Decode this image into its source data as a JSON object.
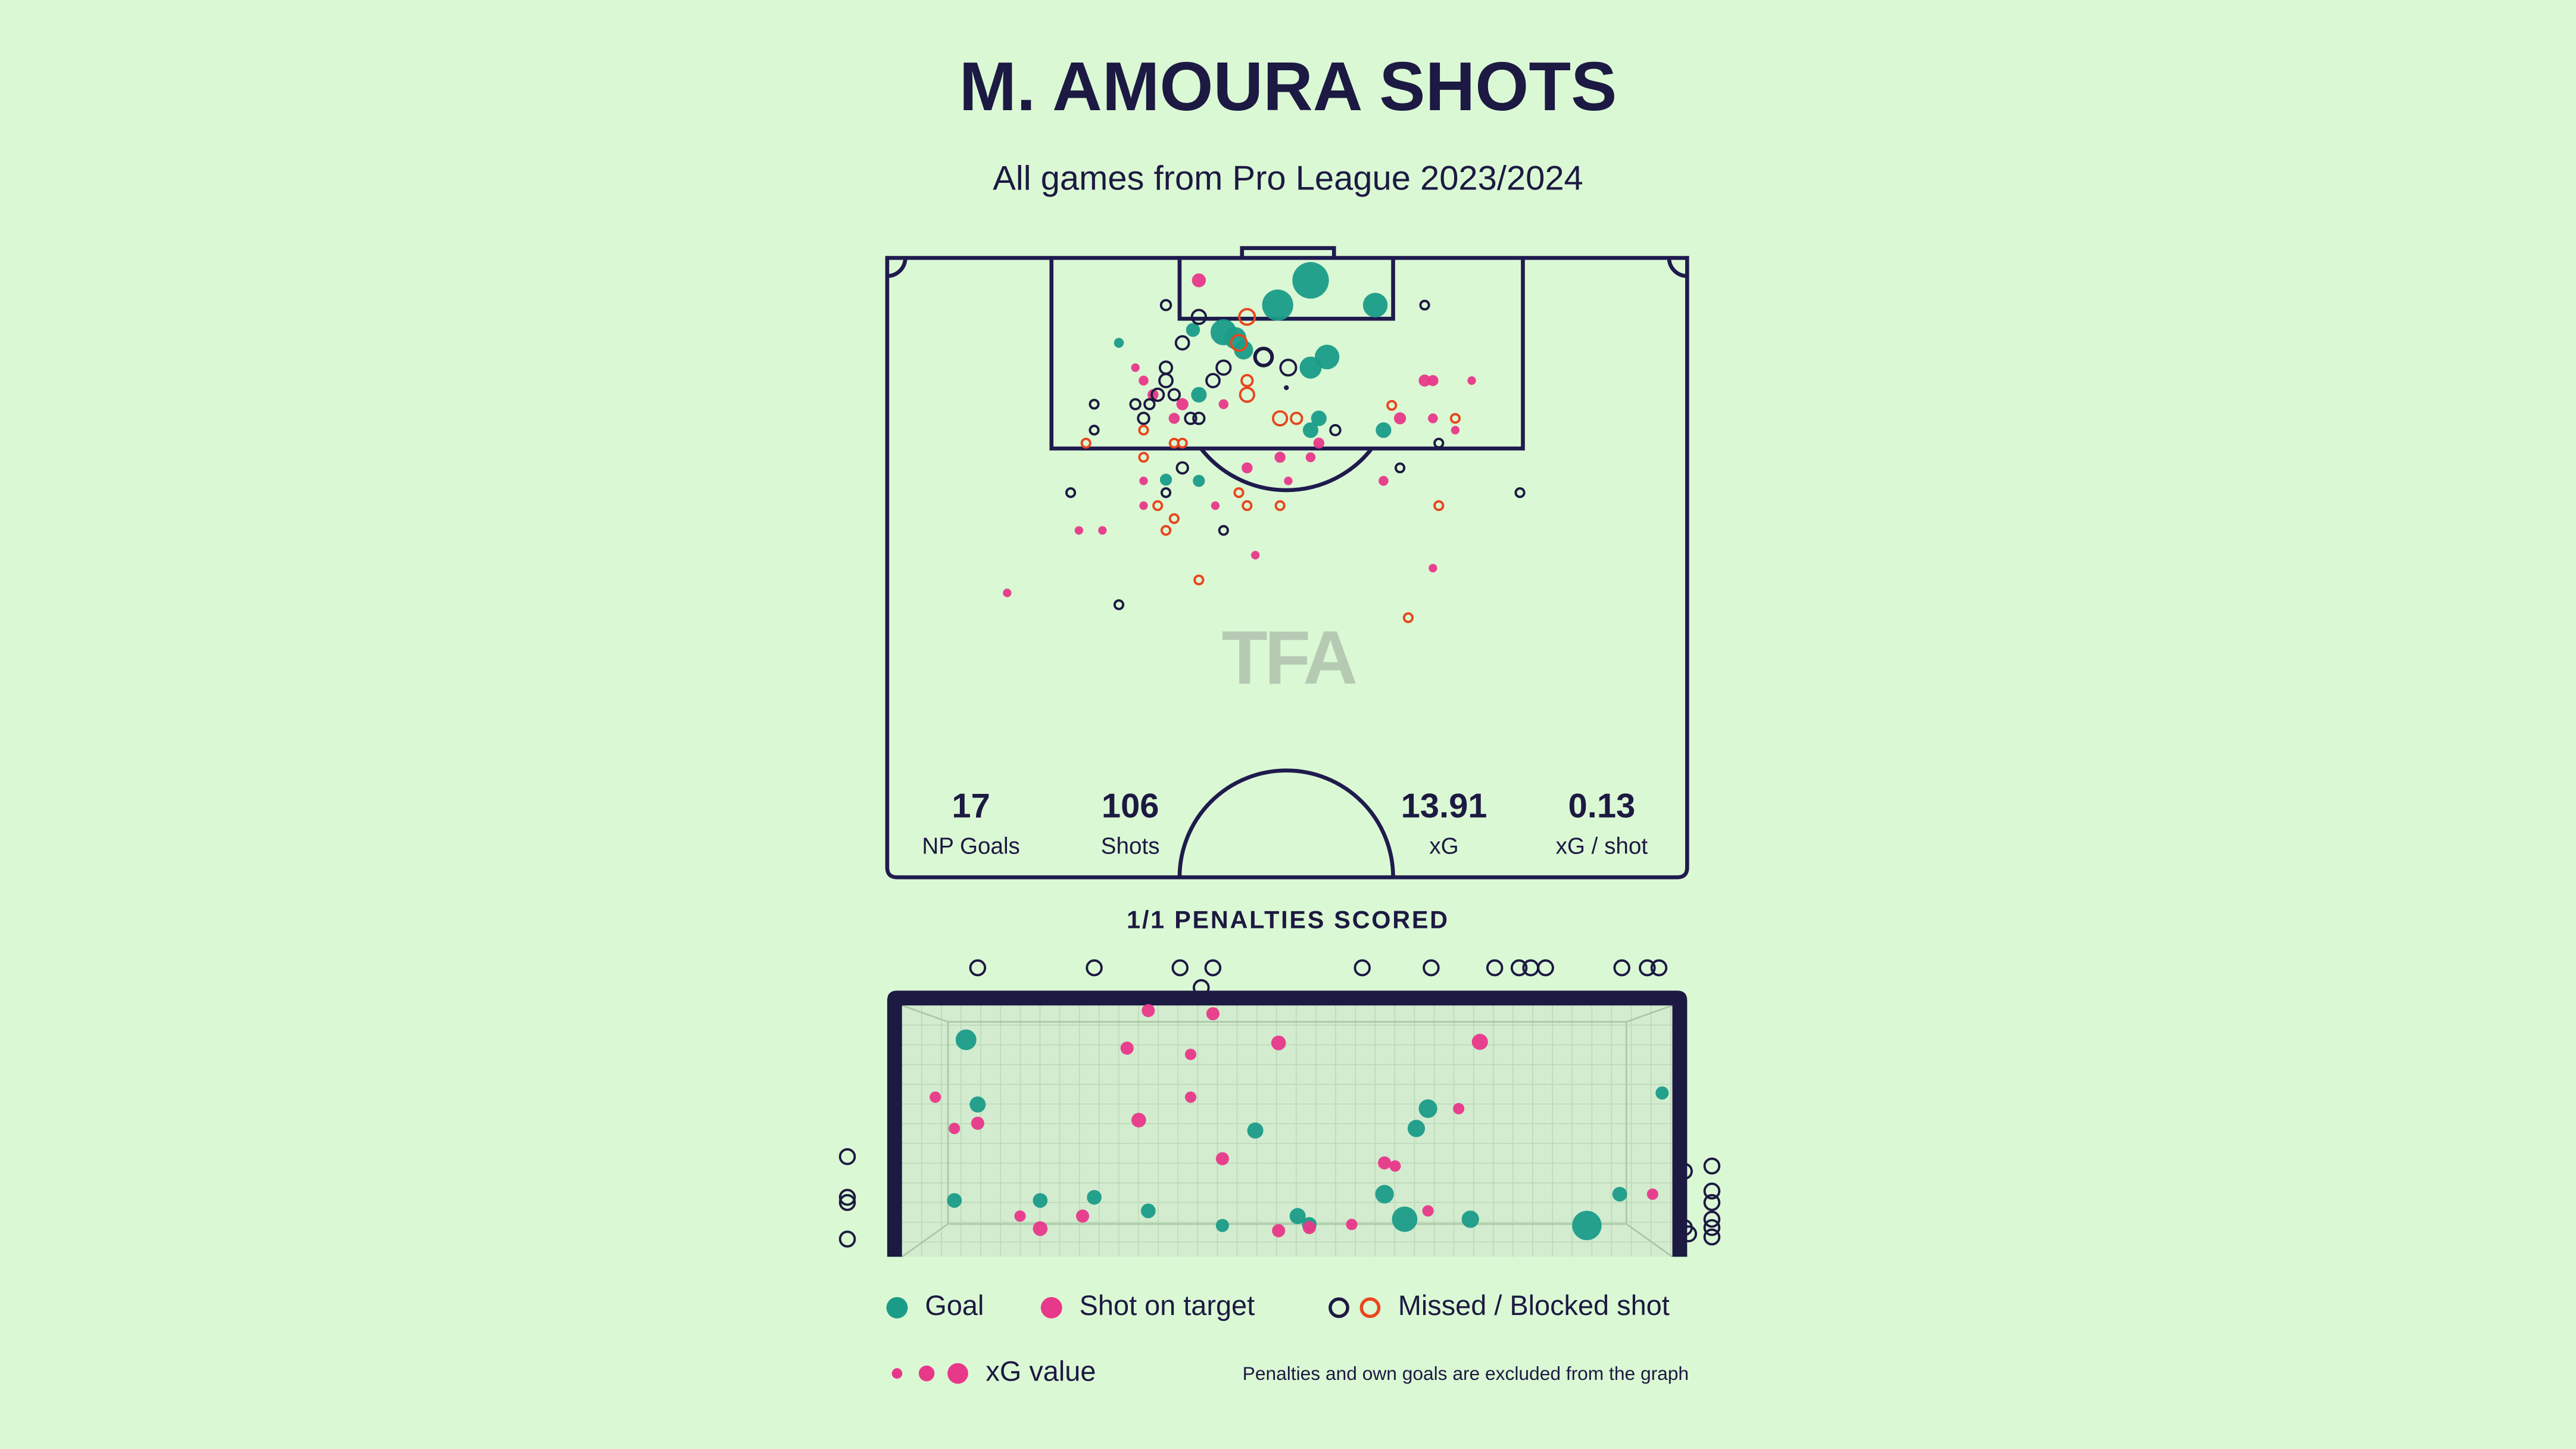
{
  "chart_data": {
    "type": "shotmap",
    "title": "M. AMOURA SHOTS",
    "subtitle": "All games from Pro League 2023/2024",
    "watermark": "TFA",
    "stats": [
      {
        "value": 17,
        "label": "NP Goals"
      },
      {
        "value": 106,
        "label": "Shots"
      },
      {
        "value": 13.91,
        "label": "xG"
      },
      {
        "value": 0.13,
        "label": "xG / shot"
      }
    ],
    "penalties": "1/1 PENALTIES SCORED",
    "legend": [
      {
        "label": "Goal",
        "colors": [
          "#1a9c88"
        ],
        "filled": true
      },
      {
        "label": "Shot on target",
        "colors": [
          "#e8388a"
        ],
        "filled": true
      },
      {
        "label": "Missed / Blocked shot",
        "colors": [
          "#1c1942",
          "#e8461e"
        ],
        "filled": false
      }
    ],
    "xg_legend": "xG value",
    "footnote": "Penalties and own goals are excluded from the graph",
    "pitch": {
      "series": [
        {
          "color": "#1a9c88",
          "filled": true,
          "x": [
            36.0,
            33.2,
            41.5,
            28.6,
            29.6,
            37.4,
            36.0,
            26.0,
            19.7,
            26.5,
            36.7,
            36.0,
            42.2,
            23.7,
            26.5,
            30.3
          ],
          "y": [
            1.9,
            4.0,
            4.0,
            6.3,
            6.8,
            8.4,
            9.3,
            6.1,
            7.2,
            11.6,
            13.6,
            14.6,
            14.6,
            18.8,
            18.9,
            7.8
          ],
          "xg": [
            0.55,
            0.4,
            0.25,
            0.28,
            0.2,
            0.25,
            0.2,
            0.08,
            0.04,
            0.1,
            0.1,
            0.1,
            0.1,
            0.06,
            0.06,
            0.15
          ]
        },
        {
          "color": "#e8388a",
          "filled": true,
          "x": [
            26.5,
            21.1,
            21.8,
            22.6,
            25.1,
            28.6,
            24.4,
            45.7,
            46.4,
            49.7,
            43.6,
            46.4,
            48.3,
            36.7,
            33.4,
            36.0,
            30.6,
            21.8,
            42.2,
            34.1,
            21.8,
            27.9,
            16.3,
            18.3,
            31.3,
            46.4,
            10.2
          ],
          "y": [
            1.9,
            9.3,
            10.4,
            11.6,
            12.4,
            12.4,
            13.6,
            10.4,
            10.4,
            10.4,
            13.6,
            13.6,
            14.6,
            15.7,
            16.9,
            16.9,
            17.8,
            18.9,
            18.9,
            18.9,
            21.0,
            21.0,
            23.1,
            23.1,
            25.2,
            26.3,
            28.4
          ],
          "xg": [
            0.08,
            0.03,
            0.04,
            0.05,
            0.06,
            0.04,
            0.05,
            0.06,
            0.05,
            0.03,
            0.06,
            0.04,
            0.03,
            0.05,
            0.05,
            0.04,
            0.05,
            0.03,
            0.04,
            0.03,
            0.03,
            0.03,
            0.03,
            0.03,
            0.03,
            0.03,
            0.03
          ]
        },
        {
          "color": "#1c1942",
          "filled": false,
          "x": [
            23.7,
            45.7,
            26.5,
            25.1,
            32.0,
            34.1,
            28.6,
            23.7,
            23.7,
            27.7,
            23.0,
            24.4,
            21.1,
            17.6,
            22.3,
            21.8,
            25.8,
            26.5,
            17.6,
            38.1,
            46.9,
            43.6,
            25.1,
            23.7,
            15.6,
            53.8,
            28.6,
            19.7
          ],
          "y": [
            4.0,
            4.0,
            5.0,
            7.2,
            8.4,
            9.3,
            9.3,
            9.3,
            10.4,
            10.4,
            11.6,
            11.6,
            12.4,
            12.4,
            12.4,
            13.6,
            13.6,
            13.6,
            14.6,
            14.6,
            15.7,
            17.8,
            17.8,
            19.9,
            19.9,
            19.9,
            23.1,
            29.4
          ],
          "xg": [
            0.04,
            0.03,
            0.08,
            0.07,
            0.12,
            0.1,
            0.08,
            0.06,
            0.07,
            0.07,
            0.06,
            0.05,
            0.04,
            0.03,
            0.04,
            0.05,
            0.05,
            0.05,
            0.03,
            0.04,
            0.03,
            0.03,
            0.05,
            0.03,
            0.03,
            0.03,
            0.03,
            0.03
          ]
        },
        {
          "color": "#e8461e",
          "filled": false,
          "x": [
            30.6,
            29.9,
            30.6,
            30.6,
            33.4,
            34.8,
            42.9,
            48.3,
            21.8,
            16.9,
            24.4,
            25.1,
            21.8,
            29.9,
            30.6,
            33.4,
            23.0,
            24.4,
            23.7,
            46.9,
            26.5,
            44.3
          ],
          "y": [
            5.0,
            7.2,
            10.4,
            11.6,
            13.6,
            13.6,
            12.5,
            13.6,
            14.6,
            15.7,
            15.7,
            15.7,
            16.9,
            19.9,
            21.0,
            21.0,
            21.0,
            22.1,
            23.1,
            21.0,
            27.3,
            30.5
          ],
          "xg": [
            0.1,
            0.1,
            0.05,
            0.08,
            0.08,
            0.05,
            0.03,
            0.03,
            0.03,
            0.03,
            0.03,
            0.03,
            0.03,
            0.03,
            0.03,
            0.03,
            0.03,
            0.03,
            0.03,
            0.03,
            0.03,
            0.03
          ]
        }
      ]
    },
    "goal_view": {
      "series": [
        {
          "color": "#1a9c88",
          "filled": true,
          "x": [
            0.62,
            0.73,
            0.51,
            1.32,
            1.83,
            2.34,
            3.04,
            3.35,
            3.75,
            3.86,
            4.57,
            4.76,
            4.87,
            4.98,
            5.38,
            6.48,
            6.79,
            7.19
          ],
          "z": [
            2.08,
            1.46,
            0.54,
            0.54,
            0.57,
            0.44,
            0.3,
            1.21,
            0.39,
            0.31,
            0.6,
            0.36,
            1.23,
            1.42,
            0.36,
            0.3,
            0.6,
            1.57
          ],
          "xg": [
            0.1,
            0.06,
            0.05,
            0.05,
            0.05,
            0.05,
            0.04,
            0.06,
            0.06,
            0.05,
            0.08,
            0.15,
            0.07,
            0.08,
            0.07,
            0.2,
            0.05,
            0.04
          ]
        },
        {
          "color": "#e8388a",
          "filled": true,
          "x": [
            2.34,
            2.95,
            2.14,
            2.74,
            3.57,
            5.47,
            0.33,
            2.74,
            0.51,
            0.73,
            2.25,
            5.27,
            3.04,
            4.57,
            4.67,
            1.13,
            1.32,
            1.72,
            3.57,
            3.86,
            4.26,
            4.98,
            7.1
          ],
          "z": [
            2.36,
            2.33,
            2.0,
            1.94,
            2.05,
            2.06,
            1.53,
            1.53,
            1.23,
            1.28,
            1.31,
            1.42,
            0.94,
            0.9,
            0.87,
            0.39,
            0.27,
            0.39,
            0.25,
            0.28,
            0.31,
            0.44,
            0.6
          ],
          "xg": [
            0.04,
            0.04,
            0.04,
            0.03,
            0.05,
            0.06,
            0.03,
            0.03,
            0.03,
            0.04,
            0.05,
            0.03,
            0.04,
            0.04,
            0.03,
            0.03,
            0.05,
            0.04,
            0.04,
            0.04,
            0.03,
            0.03,
            0.03
          ]
        },
        {
          "color": "#1c1942",
          "filled": false,
          "x": [
            0.73,
            1.83,
            2.64,
            2.95,
            2.84,
            4.36,
            5.01,
            5.61,
            5.84,
            5.95,
            6.09,
            6.81,
            7.05,
            7.16,
            -0.5,
            -0.5,
            -0.5,
            -0.5,
            7.66,
            7.66,
            7.66,
            7.66,
            7.66,
            7.66,
            7.4,
            7.4,
            7.44
          ],
          "z": [
            2.77,
            2.77,
            2.77,
            2.77,
            2.58,
            2.77,
            2.77,
            2.77,
            2.77,
            2.77,
            2.77,
            2.77,
            2.77,
            2.77,
            0.96,
            0.57,
            0.52,
            0.17,
            0.87,
            0.63,
            0.52,
            0.36,
            0.28,
            0.19,
            0.82,
            0.28,
            0.22
          ],
          "xg": [
            0.05,
            0.05,
            0.05,
            0.05,
            0.05,
            0.05,
            0.05,
            0.05,
            0.05,
            0.05,
            0.05,
            0.05,
            0.05,
            0.05,
            0.05,
            0.05,
            0.05,
            0.05,
            0.05,
            0.05,
            0.05,
            0.05,
            0.05,
            0.05,
            0.05,
            0.05,
            0.05
          ]
        }
      ]
    }
  }
}
